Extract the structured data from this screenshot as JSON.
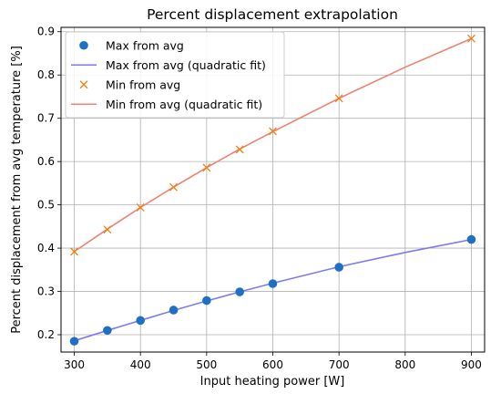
{
  "chart_data": {
    "type": "line",
    "title": "Percent displacement extrapolation",
    "xlabel": "Input heating power [W]",
    "ylabel": "Percent displacement from avg temperature [%]",
    "xlim": [
      280,
      920
    ],
    "ylim": [
      0.16,
      0.91
    ],
    "xticks": [
      300,
      400,
      500,
      600,
      700,
      800,
      900
    ],
    "yticks": [
      0.2,
      0.3,
      0.4,
      0.5,
      0.6,
      0.7,
      0.8,
      0.9
    ],
    "grid": true,
    "legend_position": "top-left",
    "series": [
      {
        "name": "Max from avg",
        "kind": "markers",
        "marker": "circle",
        "color": "#1f6fc5",
        "x": [
          300,
          350,
          400,
          450,
          500,
          550,
          600,
          700,
          900
        ],
        "y": [
          0.185,
          0.21,
          0.233,
          0.257,
          0.279,
          0.299,
          0.318,
          0.356,
          0.42
        ]
      },
      {
        "name": "Max from avg (quadratic fit)",
        "kind": "line",
        "color": "#7c7cee",
        "x": [
          300,
          350,
          400,
          450,
          500,
          550,
          600,
          700,
          800,
          900
        ],
        "y": [
          0.186,
          0.21,
          0.233,
          0.256,
          0.278,
          0.299,
          0.319,
          0.357,
          0.39,
          0.42
        ]
      },
      {
        "name": "Min from avg",
        "kind": "markers",
        "marker": "x",
        "color": "#f07f13",
        "x": [
          300,
          350,
          400,
          450,
          500,
          550,
          600,
          700,
          900
        ],
        "y": [
          0.392,
          0.443,
          0.494,
          0.541,
          0.586,
          0.628,
          0.67,
          0.746,
          0.884
        ]
      },
      {
        "name": "Min from avg (quadratic fit)",
        "kind": "line",
        "color": "#f08070",
        "x": [
          300,
          350,
          400,
          450,
          500,
          550,
          600,
          700,
          800,
          900
        ],
        "y": [
          0.392,
          0.444,
          0.494,
          0.541,
          0.586,
          0.629,
          0.669,
          0.746,
          0.818,
          0.884
        ]
      }
    ]
  }
}
